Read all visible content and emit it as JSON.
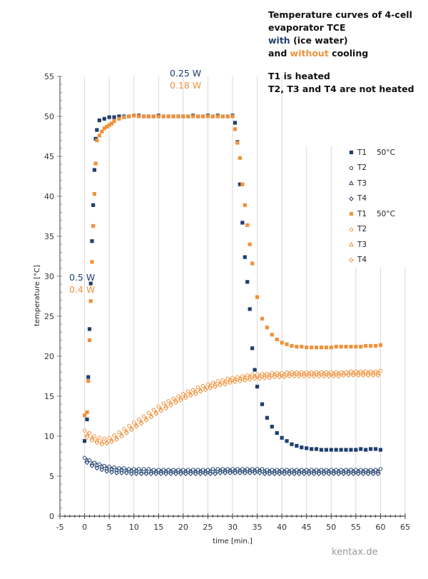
{
  "header": {
    "title_line1": "Temperature curves of 4-cell",
    "title_line2": "evaporator TCE",
    "with_word": "with",
    "with_rest": " (ice water)",
    "and_word": "and ",
    "without_word": "without",
    "cooling_word": " cooling",
    "heated_line": "T1 is heated",
    "not_heated_line": "T2, T3 and T4 are not heated"
  },
  "annotations": {
    "power_start_with": "0.5 W",
    "power_start_without": "0.4 W",
    "power_plateau_with": "0.25 W",
    "power_plateau_without": "0.18 W"
  },
  "watermark": "kentax.de",
  "colors": {
    "with": "#1f3f6e",
    "without": "#f0923c"
  },
  "legend": [
    {
      "label": "T1",
      "extra": "50°C",
      "marker": "square",
      "group": "with"
    },
    {
      "label": "T2",
      "extra": "",
      "marker": "circle",
      "group": "with"
    },
    {
      "label": "T3",
      "extra": "",
      "marker": "triangle",
      "group": "with"
    },
    {
      "label": "T4",
      "extra": "",
      "marker": "diamond",
      "group": "with"
    },
    {
      "label": "T1",
      "extra": "50°C",
      "marker": "square",
      "group": "without"
    },
    {
      "label": "T2",
      "extra": "",
      "marker": "circle",
      "group": "without"
    },
    {
      "label": "T3",
      "extra": "",
      "marker": "triangle",
      "group": "without"
    },
    {
      "label": "T4",
      "extra": "",
      "marker": "diamond",
      "group": "without"
    }
  ],
  "chart_data": {
    "type": "scatter",
    "title": "Temperature curves of 4-cell evaporator TCE with (ice water) and without cooling",
    "xlabel": "time [min.]",
    "ylabel": "temperature [°C]",
    "xlim": [
      -5,
      65
    ],
    "ylim": [
      0,
      55
    ],
    "xticks": [
      "-5",
      "0",
      "5",
      "10",
      "15",
      "20",
      "25",
      "30",
      "35",
      "40",
      "45",
      "50",
      "55",
      "60",
      "65"
    ],
    "yticks": [
      "0",
      "5",
      "10",
      "15",
      "20",
      "25",
      "30",
      "35",
      "40",
      "45",
      "50",
      "55"
    ],
    "grid": "vertical",
    "legend_position": "right",
    "series": [
      {
        "name": "T1 with",
        "group": "with",
        "marker": "square",
        "x": [
          0,
          0.5,
          0.75,
          1,
          1.25,
          1.5,
          1.75,
          2,
          2.25,
          2.5,
          3,
          4,
          5,
          6,
          7,
          8,
          9,
          10,
          11,
          12,
          13,
          14,
          15,
          16,
          17,
          18,
          19,
          20,
          21,
          22,
          23,
          24,
          25,
          26,
          27,
          28,
          29,
          30,
          30.5,
          31,
          31.5,
          32,
          32.5,
          33,
          33.5,
          34,
          34.5,
          35,
          36,
          37,
          38,
          39,
          40,
          41,
          42,
          43,
          44,
          45,
          46,
          47,
          48,
          49,
          50,
          51,
          52,
          53,
          54,
          55,
          56,
          57,
          58,
          59,
          60
        ],
        "y": [
          9.4,
          12.1,
          17.4,
          23.4,
          29.1,
          34.4,
          38.9,
          43.3,
          47.2,
          48.3,
          49.5,
          49.7,
          49.9,
          49.9,
          50.0,
          50.0,
          50.0,
          50.1,
          50.1,
          50.0,
          50.0,
          50.0,
          50.1,
          50.0,
          50.0,
          50.0,
          50.0,
          50.0,
          50.0,
          50.1,
          50.0,
          50.0,
          50.1,
          50.0,
          50.1,
          50.0,
          50.0,
          50.1,
          49.2,
          46.8,
          41.5,
          36.7,
          32.4,
          29.3,
          25.9,
          21.0,
          18.3,
          16.2,
          14.0,
          12.3,
          11.2,
          10.4,
          9.8,
          9.4,
          9.0,
          8.8,
          8.6,
          8.5,
          8.4,
          8.4,
          8.3,
          8.3,
          8.3,
          8.3,
          8.3,
          8.3,
          8.3,
          8.3,
          8.4,
          8.3,
          8.4,
          8.4,
          8.3
        ]
      },
      {
        "name": "T2 with",
        "group": "with",
        "marker": "circle",
        "x": [
          0,
          1,
          2,
          3,
          4,
          5,
          6,
          7,
          8,
          9,
          10,
          11,
          12,
          13,
          14,
          15,
          16,
          17,
          18,
          19,
          20,
          21,
          22,
          23,
          24,
          25,
          26,
          27,
          28,
          29,
          30,
          31,
          32,
          33,
          34,
          35,
          36,
          37,
          38,
          39,
          40,
          41,
          42,
          43,
          44,
          45,
          46,
          47,
          48,
          49,
          50,
          51,
          52,
          53,
          54,
          55,
          56,
          57,
          58,
          59,
          60
        ],
        "y": [
          7.3,
          7.0,
          6.7,
          6.5,
          6.3,
          6.2,
          6.1,
          6.0,
          6.0,
          5.9,
          5.9,
          5.9,
          5.9,
          5.9,
          5.8,
          5.8,
          5.8,
          5.8,
          5.8,
          5.8,
          5.8,
          5.8,
          5.8,
          5.8,
          5.8,
          5.8,
          5.9,
          5.9,
          5.9,
          5.9,
          5.9,
          5.9,
          5.9,
          5.9,
          5.9,
          5.9,
          5.9,
          5.8,
          5.8,
          5.8,
          5.8,
          5.8,
          5.8,
          5.8,
          5.8,
          5.8,
          5.8,
          5.8,
          5.8,
          5.8,
          5.8,
          5.8,
          5.8,
          5.8,
          5.8,
          5.8,
          5.8,
          5.8,
          5.8,
          5.8,
          5.9
        ]
      },
      {
        "name": "T3 with",
        "group": "with",
        "marker": "triangle",
        "x": [
          0.5,
          1.5,
          2.5,
          3.5,
          4.5,
          5.5,
          6.5,
          7.5,
          8.5,
          9.5,
          10.5,
          11.5,
          12.5,
          13.5,
          14.5,
          15.5,
          16.5,
          17.5,
          18.5,
          19.5,
          20.5,
          21.5,
          22.5,
          23.5,
          24.5,
          25.5,
          26.5,
          27.5,
          28.5,
          29.5,
          30.5,
          31.5,
          32.5,
          33.5,
          34.5,
          35.5,
          36.5,
          37.5,
          38.5,
          39.5,
          40.5,
          41.5,
          42.5,
          43.5,
          44.5,
          45.5,
          46.5,
          47.5,
          48.5,
          49.5,
          50.5,
          51.5,
          52.5,
          53.5,
          54.5,
          55.5,
          56.5,
          57.5,
          58.5,
          59.5
        ],
        "y": [
          7.0,
          6.6,
          6.4,
          6.2,
          6.0,
          5.9,
          5.8,
          5.8,
          5.7,
          5.7,
          5.7,
          5.6,
          5.6,
          5.6,
          5.6,
          5.6,
          5.6,
          5.6,
          5.6,
          5.6,
          5.6,
          5.6,
          5.6,
          5.6,
          5.6,
          5.6,
          5.6,
          5.7,
          5.7,
          5.7,
          5.7,
          5.7,
          5.7,
          5.7,
          5.7,
          5.7,
          5.6,
          5.6,
          5.6,
          5.6,
          5.6,
          5.6,
          5.6,
          5.6,
          5.6,
          5.6,
          5.6,
          5.6,
          5.6,
          5.6,
          5.6,
          5.6,
          5.6,
          5.6,
          5.6,
          5.6,
          5.6,
          5.6,
          5.6,
          5.6
        ]
      },
      {
        "name": "T4 with",
        "group": "with",
        "marker": "diamond",
        "x": [
          0.5,
          1.5,
          2.5,
          3.5,
          4.5,
          5.5,
          6.5,
          7.5,
          8.5,
          9.5,
          10.5,
          11.5,
          12.5,
          13.5,
          14.5,
          15.5,
          16.5,
          17.5,
          18.5,
          19.5,
          20.5,
          21.5,
          22.5,
          23.5,
          24.5,
          25.5,
          26.5,
          27.5,
          28.5,
          29.5,
          30.5,
          31.5,
          32.5,
          33.5,
          34.5,
          35.5,
          36.5,
          37.5,
          38.5,
          39.5,
          40.5,
          41.5,
          42.5,
          43.5,
          44.5,
          45.5,
          46.5,
          47.5,
          48.5,
          49.5,
          50.5,
          51.5,
          52.5,
          53.5,
          54.5,
          55.5,
          56.5,
          57.5,
          58.5,
          59.5
        ],
        "y": [
          6.7,
          6.3,
          6.0,
          5.8,
          5.6,
          5.5,
          5.4,
          5.4,
          5.4,
          5.3,
          5.3,
          5.3,
          5.3,
          5.3,
          5.3,
          5.3,
          5.3,
          5.3,
          5.3,
          5.3,
          5.3,
          5.3,
          5.3,
          5.3,
          5.3,
          5.3,
          5.3,
          5.4,
          5.4,
          5.4,
          5.4,
          5.4,
          5.4,
          5.4,
          5.4,
          5.4,
          5.3,
          5.3,
          5.3,
          5.3,
          5.3,
          5.3,
          5.3,
          5.3,
          5.3,
          5.3,
          5.3,
          5.3,
          5.3,
          5.3,
          5.3,
          5.3,
          5.3,
          5.3,
          5.3,
          5.3,
          5.3,
          5.3,
          5.3,
          5.3
        ]
      },
      {
        "name": "T1 without",
        "group": "without",
        "marker": "square",
        "x": [
          0,
          0.5,
          0.75,
          1,
          1.25,
          1.5,
          1.75,
          2,
          2.25,
          2.5,
          3,
          3.5,
          4,
          4.5,
          5,
          5.5,
          6,
          7,
          8,
          9,
          10,
          11,
          12,
          13,
          14,
          15,
          16,
          17,
          18,
          19,
          20,
          21,
          22,
          23,
          24,
          25,
          26,
          27,
          28,
          29,
          30,
          30.5,
          31,
          31.5,
          32,
          32.5,
          33,
          33.5,
          34,
          35,
          36,
          37,
          38,
          39,
          40,
          41,
          42,
          43,
          44,
          45,
          46,
          47,
          48,
          49,
          50,
          51,
          52,
          53,
          54,
          55,
          56,
          57,
          58,
          59,
          60
        ],
        "y": [
          12.6,
          13.0,
          16.9,
          22.0,
          26.9,
          31.8,
          36.3,
          40.3,
          44.1,
          47.0,
          47.6,
          48.1,
          48.5,
          48.7,
          48.9,
          49.1,
          49.4,
          49.7,
          49.9,
          50.0,
          50.1,
          50.0,
          50.0,
          50.0,
          50.0,
          50.0,
          50.0,
          50.0,
          50.0,
          50.0,
          50.0,
          50.0,
          50.0,
          50.0,
          50.0,
          50.0,
          50.0,
          50.0,
          50.0,
          50.0,
          50.0,
          48.4,
          46.7,
          44.8,
          41.5,
          38.9,
          36.4,
          34.0,
          31.6,
          27.4,
          24.7,
          23.6,
          22.7,
          22.1,
          21.7,
          21.5,
          21.3,
          21.2,
          21.2,
          21.1,
          21.1,
          21.1,
          21.1,
          21.1,
          21.1,
          21.2,
          21.2,
          21.2,
          21.2,
          21.2,
          21.2,
          21.3,
          21.3,
          21.3,
          21.4
        ]
      },
      {
        "name": "T2 without",
        "group": "without",
        "marker": "circle",
        "x": [
          0,
          1,
          2,
          3,
          4,
          5,
          6,
          7,
          8,
          9,
          10,
          11,
          12,
          13,
          14,
          15,
          16,
          17,
          18,
          19,
          20,
          21,
          22,
          23,
          24,
          25,
          26,
          27,
          28,
          29,
          30,
          31,
          32,
          33,
          34,
          35,
          36,
          37,
          38,
          39,
          40,
          41,
          42,
          43,
          44,
          45,
          46,
          47,
          48,
          49,
          50,
          51,
          52,
          53,
          54,
          55,
          56,
          57,
          58,
          59,
          60
        ],
        "y": [
          10.7,
          10.4,
          10.0,
          9.8,
          9.7,
          9.8,
          10.1,
          10.5,
          10.9,
          11.3,
          11.7,
          12.1,
          12.5,
          12.9,
          13.3,
          13.7,
          14.1,
          14.4,
          14.7,
          15.0,
          15.3,
          15.6,
          15.8,
          16.1,
          16.3,
          16.5,
          16.7,
          16.9,
          17.0,
          17.2,
          17.3,
          17.4,
          17.5,
          17.6,
          17.7,
          17.7,
          17.8,
          17.8,
          17.9,
          17.9,
          17.9,
          18.0,
          18.0,
          18.0,
          18.0,
          18.0,
          18.0,
          18.0,
          18.0,
          18.0,
          18.0,
          18.0,
          18.0,
          18.0,
          18.1,
          18.1,
          18.1,
          18.1,
          18.1,
          18.1,
          18.2
        ]
      },
      {
        "name": "T3 without",
        "group": "without",
        "marker": "triangle",
        "x": [
          0.5,
          1.5,
          2.5,
          3.5,
          4.5,
          5.5,
          6.5,
          7.5,
          8.5,
          9.5,
          10.5,
          11.5,
          12.5,
          13.5,
          14.5,
          15.5,
          16.5,
          17.5,
          18.5,
          19.5,
          20.5,
          21.5,
          22.5,
          23.5,
          24.5,
          25.5,
          26.5,
          27.5,
          28.5,
          29.5,
          30.5,
          31.5,
          32.5,
          33.5,
          34.5,
          35.5,
          36.5,
          37.5,
          38.5,
          39.5,
          40.5,
          41.5,
          42.5,
          43.5,
          44.5,
          45.5,
          46.5,
          47.5,
          48.5,
          49.5,
          50.5,
          51.5,
          52.5,
          53.5,
          54.5,
          55.5,
          56.5,
          57.5,
          58.5,
          59.5
        ],
        "y": [
          10.2,
          9.8,
          9.5,
          9.3,
          9.3,
          9.5,
          9.8,
          10.2,
          10.6,
          11.0,
          11.4,
          11.8,
          12.2,
          12.6,
          13.0,
          13.4,
          13.8,
          14.1,
          14.5,
          14.8,
          15.1,
          15.3,
          15.6,
          15.8,
          16.0,
          16.3,
          16.5,
          16.6,
          16.8,
          17.0,
          17.1,
          17.2,
          17.3,
          17.4,
          17.5,
          17.5,
          17.6,
          17.6,
          17.7,
          17.7,
          17.7,
          17.8,
          17.8,
          17.8,
          17.8,
          17.8,
          17.8,
          17.8,
          17.8,
          17.8,
          17.8,
          17.8,
          17.9,
          17.9,
          17.9,
          17.9,
          17.9,
          17.9,
          17.9,
          17.9
        ]
      },
      {
        "name": "T4 without",
        "group": "without",
        "marker": "diamond",
        "x": [
          0.5,
          1.5,
          2.5,
          3.5,
          4.5,
          5.5,
          6.5,
          7.5,
          8.5,
          9.5,
          10.5,
          11.5,
          12.5,
          13.5,
          14.5,
          15.5,
          16.5,
          17.5,
          18.5,
          19.5,
          20.5,
          21.5,
          22.5,
          23.5,
          24.5,
          25.5,
          26.5,
          27.5,
          28.5,
          29.5,
          30.5,
          31.5,
          32.5,
          33.5,
          34.5,
          35.5,
          36.5,
          37.5,
          38.5,
          39.5,
          40.5,
          41.5,
          42.5,
          43.5,
          44.5,
          45.5,
          46.5,
          47.5,
          48.5,
          49.5,
          50.5,
          51.5,
          52.5,
          53.5,
          54.5,
          55.5,
          56.5,
          57.5,
          58.5,
          59.5
        ],
        "y": [
          9.9,
          9.5,
          9.2,
          9.0,
          9.1,
          9.3,
          9.6,
          10.0,
          10.4,
          10.8,
          11.2,
          11.6,
          12.0,
          12.4,
          12.8,
          13.2,
          13.5,
          13.9,
          14.2,
          14.5,
          14.8,
          15.1,
          15.3,
          15.6,
          15.8,
          16.0,
          16.2,
          16.4,
          16.5,
          16.7,
          16.8,
          16.9,
          17.0,
          17.1,
          17.2,
          17.2,
          17.3,
          17.3,
          17.4,
          17.4,
          17.4,
          17.5,
          17.5,
          17.5,
          17.5,
          17.5,
          17.5,
          17.5,
          17.5,
          17.5,
          17.5,
          17.5,
          17.6,
          17.6,
          17.6,
          17.6,
          17.6,
          17.6,
          17.6,
          17.6
        ]
      }
    ]
  }
}
